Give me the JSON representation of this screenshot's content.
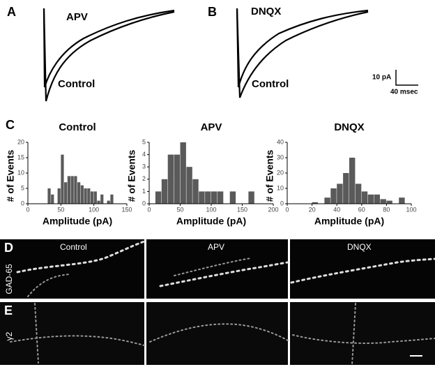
{
  "panel_a": {
    "letter": "A",
    "labels": [
      "APV",
      "Control"
    ]
  },
  "panel_b": {
    "letter": "B",
    "labels": [
      "DNQX",
      "Control"
    ]
  },
  "scale_bar": {
    "vertical": "10 pA",
    "horizontal": "40 msec"
  },
  "panel_c": {
    "letter": "C"
  },
  "chart_data": [
    {
      "type": "histogram",
      "title": "Control",
      "xlabel": "Amplitude (pA)",
      "ylabel": "# of Events",
      "color": "#5a5a5a",
      "bins": [
        30,
        35,
        40,
        45,
        50,
        55,
        60,
        65,
        70,
        75,
        80,
        85,
        90,
        95,
        100,
        105,
        110,
        115,
        120,
        125,
        130
      ],
      "values": [
        5,
        3,
        0,
        5,
        16,
        7,
        9,
        9,
        9,
        7,
        6,
        5,
        5,
        4,
        4,
        1,
        3,
        0,
        1,
        3
      ],
      "xlim": [
        0,
        150
      ],
      "xticks": [
        0,
        50,
        100,
        150
      ],
      "ylim": [
        0,
        20
      ],
      "yticks": [
        0,
        5,
        10,
        15,
        20
      ]
    },
    {
      "type": "histogram",
      "title": "APV",
      "xlabel": "Amplitude (pA)",
      "ylabel": "# of Events",
      "color": "#5a5a5a",
      "bins": [
        10,
        20,
        30,
        40,
        50,
        60,
        70,
        80,
        90,
        100,
        110,
        120,
        130,
        140,
        150,
        160,
        170
      ],
      "values": [
        1,
        2,
        4,
        4,
        5,
        3,
        2,
        1,
        1,
        1,
        1,
        0,
        1,
        0,
        0,
        1
      ],
      "xlim": [
        0,
        200
      ],
      "xticks": [
        0,
        50,
        100,
        150,
        200
      ],
      "ylim": [
        0,
        5
      ],
      "yticks": [
        0,
        1,
        2,
        3,
        4,
        5
      ]
    },
    {
      "type": "histogram",
      "title": "DNQX",
      "xlabel": "Amplitude (pA)",
      "ylabel": "# of Events",
      "color": "#5a5a5a",
      "bins": [
        20,
        25,
        30,
        35,
        40,
        45,
        50,
        55,
        60,
        65,
        70,
        75,
        80,
        85,
        90,
        95
      ],
      "values": [
        1,
        0,
        4,
        10,
        13,
        20,
        30,
        13,
        8,
        6,
        6,
        3,
        2,
        0,
        4
      ],
      "xlim": [
        0,
        100
      ],
      "xticks": [
        0,
        20,
        40,
        60,
        80,
        100
      ],
      "ylim": [
        0,
        40
      ],
      "yticks": [
        0,
        10,
        20,
        30,
        40
      ]
    }
  ],
  "images": {
    "columns": [
      "Control",
      "APV",
      "DNQX"
    ],
    "rows": [
      {
        "letter": "D",
        "label": "GAD-65"
      },
      {
        "letter": "E",
        "label": "γ2"
      }
    ]
  }
}
